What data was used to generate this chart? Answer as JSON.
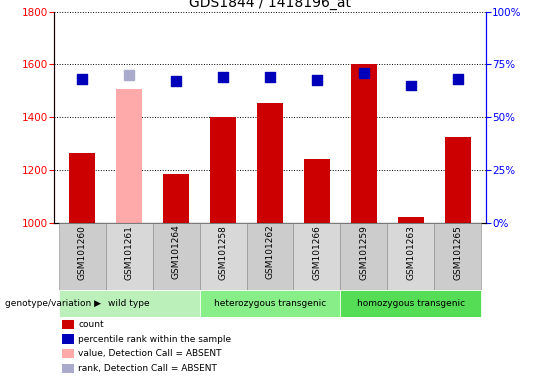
{
  "title": "GDS1844 / 1418196_at",
  "samples": [
    "GSM101260",
    "GSM101261",
    "GSM101264",
    "GSM101258",
    "GSM101262",
    "GSM101266",
    "GSM101259",
    "GSM101263",
    "GSM101265"
  ],
  "count_values": [
    1265,
    1505,
    1185,
    1400,
    1455,
    1240,
    1600,
    1020,
    1325
  ],
  "rank_values": [
    68,
    70,
    67,
    69,
    69,
    67.5,
    71,
    65,
    68
  ],
  "absent_mask": [
    false,
    true,
    false,
    false,
    false,
    false,
    false,
    false,
    false
  ],
  "absent_rank_mask": [
    false,
    true,
    false,
    false,
    false,
    false,
    false,
    false,
    false
  ],
  "groups": [
    {
      "label": "wild type",
      "start": 0,
      "end": 3,
      "color": "#bbf0bb"
    },
    {
      "label": "heterozygous transgenic",
      "start": 3,
      "end": 6,
      "color": "#88ee88"
    },
    {
      "label": "homozygous transgenic",
      "start": 6,
      "end": 9,
      "color": "#55dd55"
    }
  ],
  "ylim_left": [
    1000,
    1800
  ],
  "ylim_right": [
    0,
    100
  ],
  "yticks_left": [
    1000,
    1200,
    1400,
    1600,
    1800
  ],
  "yticks_right": [
    0,
    25,
    50,
    75,
    100
  ],
  "bar_color_normal": "#cc0000",
  "bar_color_absent": "#ffaaaa",
  "rank_color_normal": "#0000bb",
  "rank_color_absent": "#aaaacc",
  "bar_width": 0.55,
  "rank_marker_size": 7,
  "legend_items": [
    {
      "color": "#cc0000",
      "label": "count"
    },
    {
      "color": "#0000bb",
      "label": "percentile rank within the sample"
    },
    {
      "color": "#ffaaaa",
      "label": "value, Detection Call = ABSENT"
    },
    {
      "color": "#aaaacc",
      "label": "rank, Detection Call = ABSENT"
    }
  ],
  "genotype_label": "genotype/variation",
  "sample_cell_color": "#cccccc",
  "sample_cell_border": "#888888"
}
